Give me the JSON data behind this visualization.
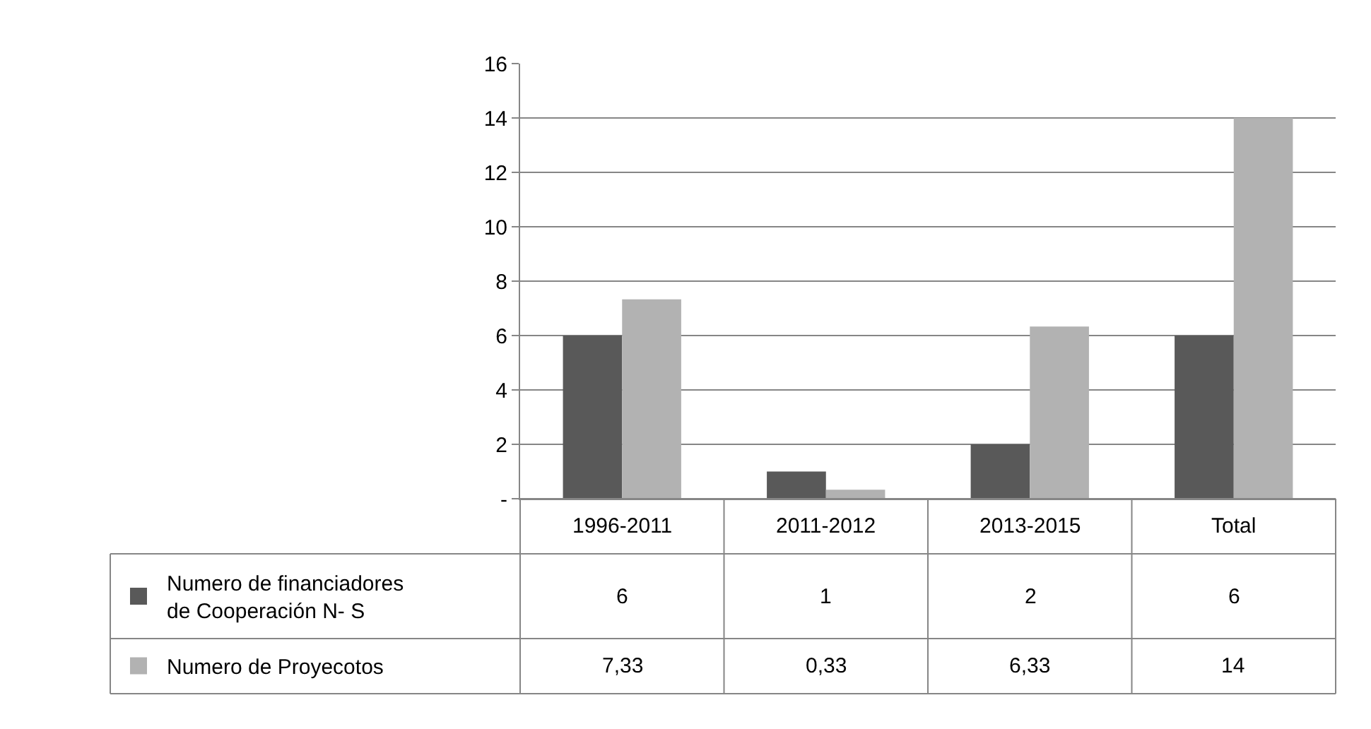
{
  "chart_data": {
    "type": "bar",
    "categories": [
      "1996-2011",
      "2011-2012",
      "2013-2015",
      "Total"
    ],
    "series": [
      {
        "name": "Numero de financiadores de Cooperación N- S",
        "color": "#595959",
        "values": [
          6,
          1,
          2,
          6
        ],
        "value_labels": [
          "6",
          "1",
          "2",
          "6"
        ]
      },
      {
        "name": "Numero de Proyecotos",
        "color": "#b2b2b2",
        "values": [
          7.33,
          0.33,
          6.33,
          14
        ],
        "value_labels": [
          "7,33",
          "0,33",
          "6,33",
          "14"
        ]
      }
    ],
    "ylim": [
      0,
      16
    ],
    "yticks": [
      {
        "value": 0,
        "label": "-"
      },
      2,
      4,
      6,
      8,
      10,
      12,
      14,
      16
    ],
    "grid": "y",
    "legend": "bottom"
  }
}
